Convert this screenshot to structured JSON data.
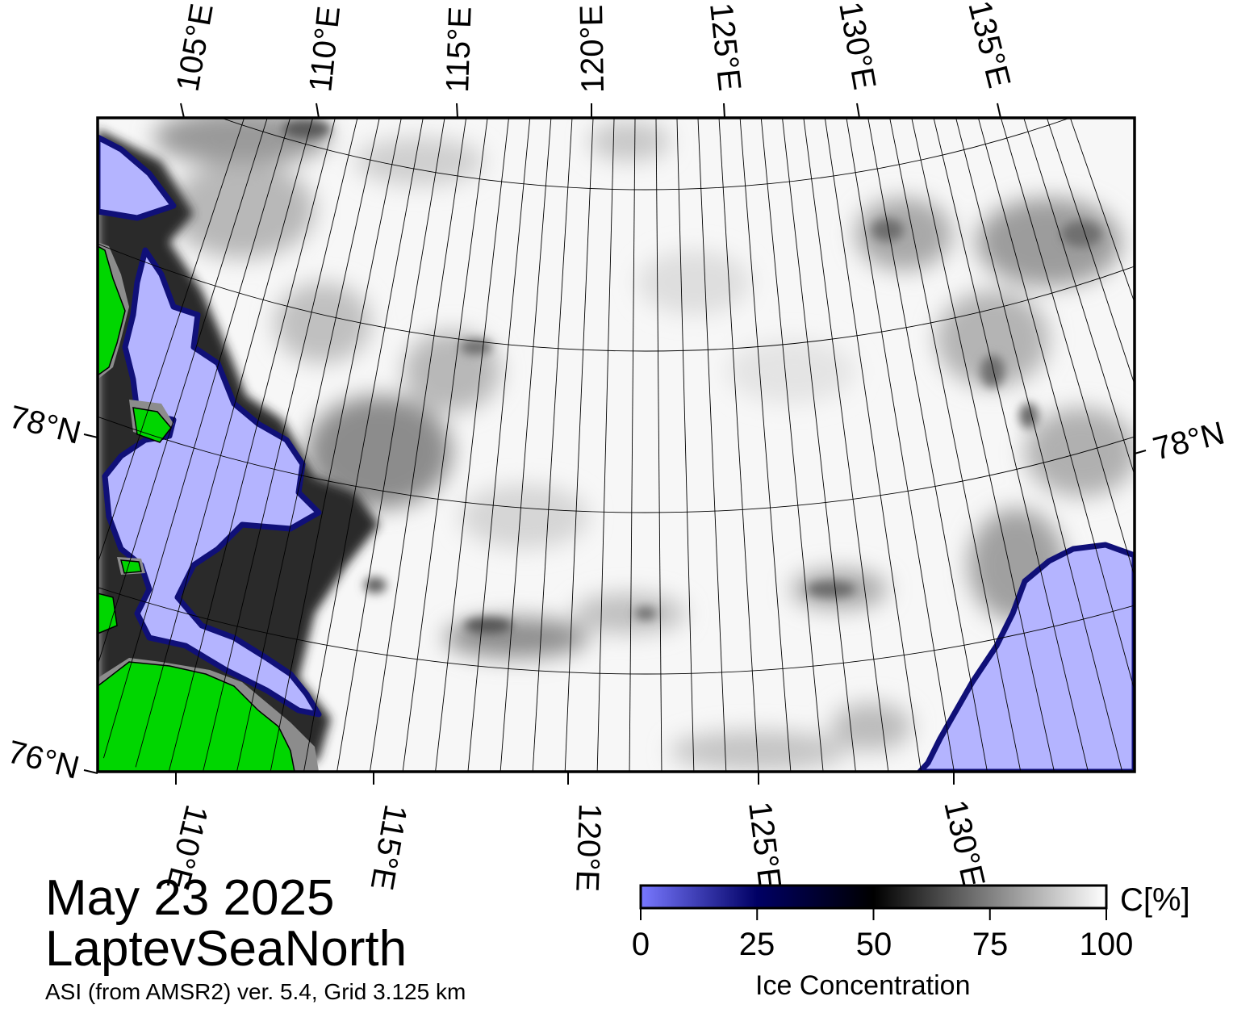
{
  "title": {
    "date": "May 23 2025",
    "region": "LaptevSeaNorth",
    "product": "ASI (from AMSR2) ver. 5.4,  Grid 3.125 km"
  },
  "map": {
    "projection": "polar stereographic",
    "top_lon_labels": [
      "105°E",
      "110°E",
      "115°E",
      "120°E",
      "125°E",
      "130°E",
      "135°E"
    ],
    "bottom_lon_labels": [
      "110°E",
      "115°E",
      "120°E",
      "125°E",
      "130°E"
    ],
    "lat_labels": [
      "78°N",
      "76°N"
    ],
    "right_lat_label": "78°N",
    "colors": {
      "land": "#00d600",
      "coast_mask": "#8c8c8c",
      "open_water": "#b4b4ff",
      "ice_margin": "#101078",
      "ice_dark": "#5a5a5a",
      "ice_medium": "#bdbdbd",
      "ice_light": "#ececec",
      "ice_full": "#ffffff"
    }
  },
  "colorbar": {
    "label": "Ice Concentration",
    "unit": "C[%]",
    "min": 0,
    "max": 100,
    "tick_labels": [
      "0",
      "25",
      "50",
      "75",
      "100"
    ],
    "colors": [
      "#7878ff",
      "#000064",
      "#000000",
      "#808080",
      "#ffffff"
    ]
  }
}
